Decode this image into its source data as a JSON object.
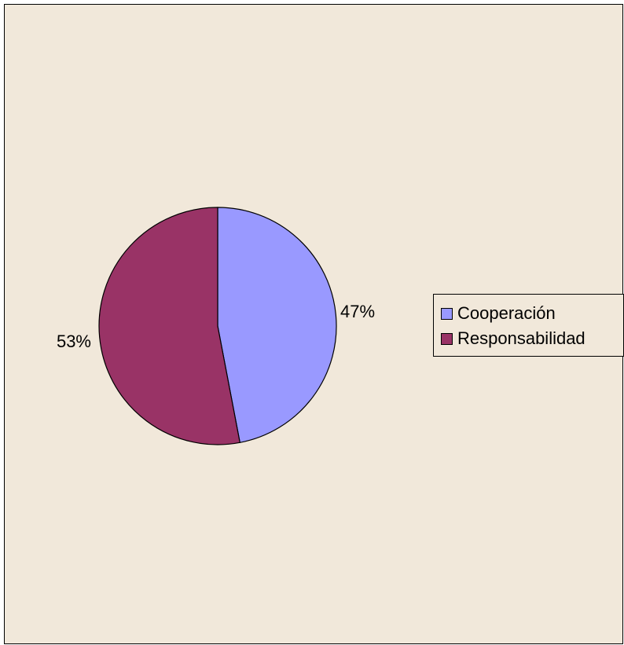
{
  "colors": {
    "background": "#f1e8da",
    "border": "#000000"
  },
  "chart_data": {
    "type": "pie",
    "title": "",
    "slices": [
      {
        "name": "Cooperación",
        "value": 47,
        "label": "47%",
        "color": "#9999ff"
      },
      {
        "name": "Responsabilidad",
        "value": 53,
        "label": "53%",
        "color": "#993366"
      }
    ],
    "start_angle": "12 o'clock",
    "direction": "clockwise",
    "legend": {
      "placement": "right",
      "entries": [
        "Cooperación",
        "Responsabilidad"
      ]
    }
  }
}
